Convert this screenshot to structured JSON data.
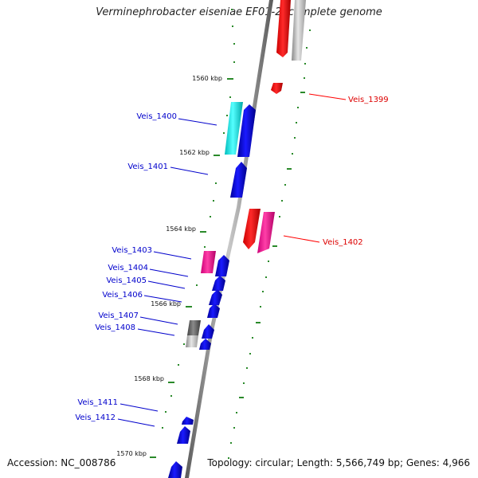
{
  "header": {
    "title": "Verminephrobacter eiseniae EF01-2, complete genome"
  },
  "footer": {
    "accession": "Accession: NC_008786",
    "summary": "Topology: circular; Length: 5,566,749 bp; Genes: 4,966"
  },
  "scale_ticks": [
    "1560 kbp",
    "1562 kbp",
    "1564 kbp",
    "1566 kbp",
    "1568 kbp",
    "1570 kbp"
  ],
  "genes": [
    {
      "label": "Veis_1399",
      "color": "#ff0000",
      "strand": "right"
    },
    {
      "label": "Veis_1400",
      "color": "#0000cc",
      "strand": "left"
    },
    {
      "label": "Veis_1401",
      "color": "#0000cc",
      "strand": "left"
    },
    {
      "label": "Veis_1402",
      "color": "#ff0000",
      "strand": "right"
    },
    {
      "label": "Veis_1403",
      "color": "#0000cc",
      "strand": "left"
    },
    {
      "label": "Veis_1404",
      "color": "#0000cc",
      "strand": "left"
    },
    {
      "label": "Veis_1405",
      "color": "#0000cc",
      "strand": "left"
    },
    {
      "label": "Veis_1406",
      "color": "#0000cc",
      "strand": "left"
    },
    {
      "label": "Veis_1407",
      "color": "#0000cc",
      "strand": "left"
    },
    {
      "label": "Veis_1408",
      "color": "#0000cc",
      "strand": "left"
    },
    {
      "label": "Veis_1411",
      "color": "#0000cc",
      "strand": "left"
    },
    {
      "label": "Veis_1412",
      "color": "#0000cc",
      "strand": "left"
    }
  ],
  "colors": {
    "backbone": "#808080",
    "tick_dash": "#2a8a2a",
    "forward_cds": "#ff0000",
    "forward_rna": "#ff3399",
    "reverse_cds": "#0000cc",
    "reverse_rna": "#00dddd",
    "reverse_other": "#555555",
    "forward_other": "#aaaaaa"
  }
}
